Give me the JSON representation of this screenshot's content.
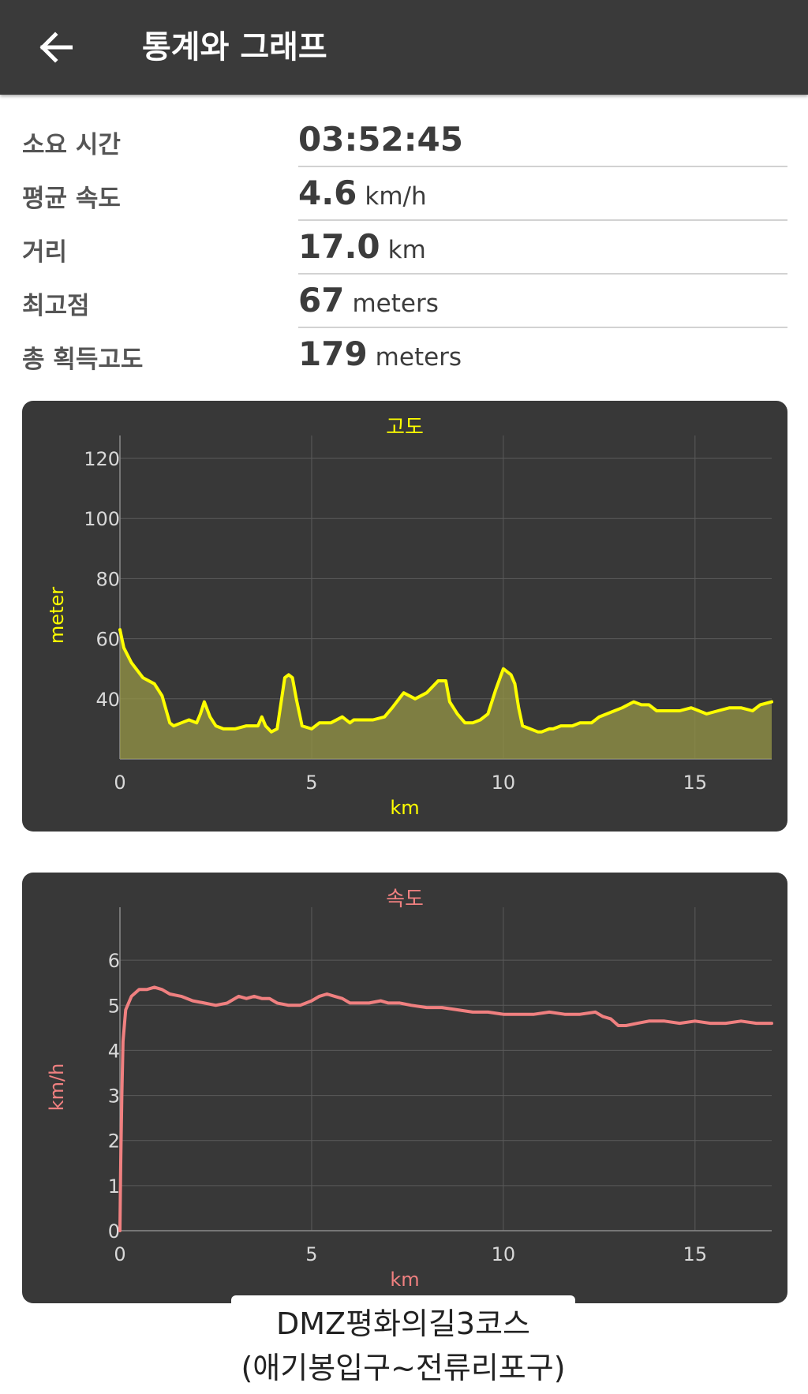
{
  "header": {
    "title": "통계와 그래프",
    "back_icon": "arrow-left-icon"
  },
  "stats": [
    {
      "label": "소요 시간",
      "value": "03:52:45",
      "unit": ""
    },
    {
      "label": "평균 속도",
      "value": "4.6",
      "unit": "km/h"
    },
    {
      "label": "거리",
      "value": "17.0",
      "unit": "km"
    },
    {
      "label": "최고점",
      "value": "67",
      "unit": "meters"
    },
    {
      "label": "총 획득고도",
      "value": "179",
      "unit": "meters"
    }
  ],
  "colors": {
    "appbar": "#3a3a3a",
    "card": "#383838",
    "elevation": "#ffff00",
    "speed": "#f08080"
  },
  "chart_data": [
    {
      "type": "area",
      "title": "고도",
      "xlabel": "km",
      "ylabel": "meter",
      "xlim": [
        0,
        17
      ],
      "ylim": [
        20,
        125
      ],
      "xticks": [
        0,
        5,
        10,
        15
      ],
      "yticks": [
        40,
        60,
        80,
        100,
        120
      ],
      "grid": true,
      "x": [
        0,
        0.1,
        0.3,
        0.6,
        0.9,
        1.1,
        1.3,
        1.4,
        1.6,
        1.8,
        2.0,
        2.1,
        2.2,
        2.35,
        2.5,
        2.7,
        3.0,
        3.3,
        3.6,
        3.7,
        3.8,
        3.95,
        4.1,
        4.3,
        4.4,
        4.5,
        4.6,
        4.75,
        5.0,
        5.2,
        5.5,
        5.8,
        6.0,
        6.1,
        6.4,
        6.6,
        6.9,
        7.1,
        7.4,
        7.7,
        8.0,
        8.3,
        8.5,
        8.6,
        8.8,
        9.0,
        9.2,
        9.4,
        9.6,
        9.8,
        10.0,
        10.2,
        10.3,
        10.4,
        10.5,
        10.7,
        10.9,
        11.0,
        11.2,
        11.3,
        11.5,
        11.8,
        12.0,
        12.3,
        12.5,
        12.7,
        12.9,
        13.1,
        13.4,
        13.6,
        13.8,
        14.0,
        14.3,
        14.6,
        14.9,
        15.1,
        15.3,
        15.6,
        15.9,
        16.2,
        16.5,
        16.7,
        17.0
      ],
      "values": [
        63,
        57,
        52,
        47,
        45,
        41,
        32,
        31,
        32,
        33,
        32,
        35,
        39,
        34,
        31,
        30,
        30,
        31,
        31,
        34,
        31,
        29,
        30,
        47,
        48,
        47,
        40,
        31,
        30,
        32,
        32,
        34,
        32,
        33,
        33,
        33,
        34,
        37,
        42,
        40,
        42,
        46,
        46,
        39,
        35,
        32,
        32,
        33,
        35,
        43,
        50,
        48,
        45,
        37,
        31,
        30,
        29,
        29,
        30,
        30,
        31,
        31,
        32,
        32,
        34,
        35,
        36,
        37,
        39,
        38,
        38,
        36,
        36,
        36,
        37,
        36,
        35,
        36,
        37,
        37,
        36,
        38,
        39
      ]
    },
    {
      "type": "line",
      "title": "속도",
      "xlabel": "km",
      "ylabel": "km/h",
      "xlim": [
        0,
        17
      ],
      "ylim": [
        0,
        7
      ],
      "xticks": [
        0,
        5,
        10,
        15
      ],
      "yticks": [
        0,
        1,
        2,
        3,
        4,
        5,
        6
      ],
      "grid": true,
      "x": [
        0,
        0.02,
        0.05,
        0.08,
        0.15,
        0.3,
        0.5,
        0.7,
        0.9,
        1.1,
        1.3,
        1.6,
        1.9,
        2.2,
        2.5,
        2.8,
        3.1,
        3.3,
        3.5,
        3.7,
        3.9,
        4.1,
        4.4,
        4.7,
        5.0,
        5.2,
        5.4,
        5.6,
        5.8,
        6.0,
        6.2,
        6.5,
        6.8,
        7.0,
        7.3,
        7.6,
        8.0,
        8.4,
        8.8,
        9.2,
        9.6,
        10.0,
        10.4,
        10.8,
        11.2,
        11.6,
        12.0,
        12.4,
        12.6,
        12.8,
        13.0,
        13.2,
        13.5,
        13.8,
        14.2,
        14.6,
        15.0,
        15.4,
        15.8,
        16.2,
        16.6,
        17.0
      ],
      "values": [
        0,
        1.5,
        3.0,
        4.2,
        4.9,
        5.2,
        5.35,
        5.35,
        5.4,
        5.35,
        5.25,
        5.2,
        5.1,
        5.05,
        5.0,
        5.05,
        5.2,
        5.15,
        5.2,
        5.15,
        5.15,
        5.05,
        5.0,
        5.0,
        5.1,
        5.2,
        5.25,
        5.2,
        5.15,
        5.05,
        5.05,
        5.05,
        5.1,
        5.05,
        5.05,
        5.0,
        4.95,
        4.95,
        4.9,
        4.85,
        4.85,
        4.8,
        4.8,
        4.8,
        4.85,
        4.8,
        4.8,
        4.85,
        4.75,
        4.7,
        4.55,
        4.55,
        4.6,
        4.65,
        4.65,
        4.6,
        4.65,
        4.6,
        4.6,
        4.65,
        4.6,
        4.6
      ]
    }
  ],
  "caption": {
    "line1": "DMZ평화의길3코스",
    "line2": "(애기봉입구~전류리포구)"
  }
}
